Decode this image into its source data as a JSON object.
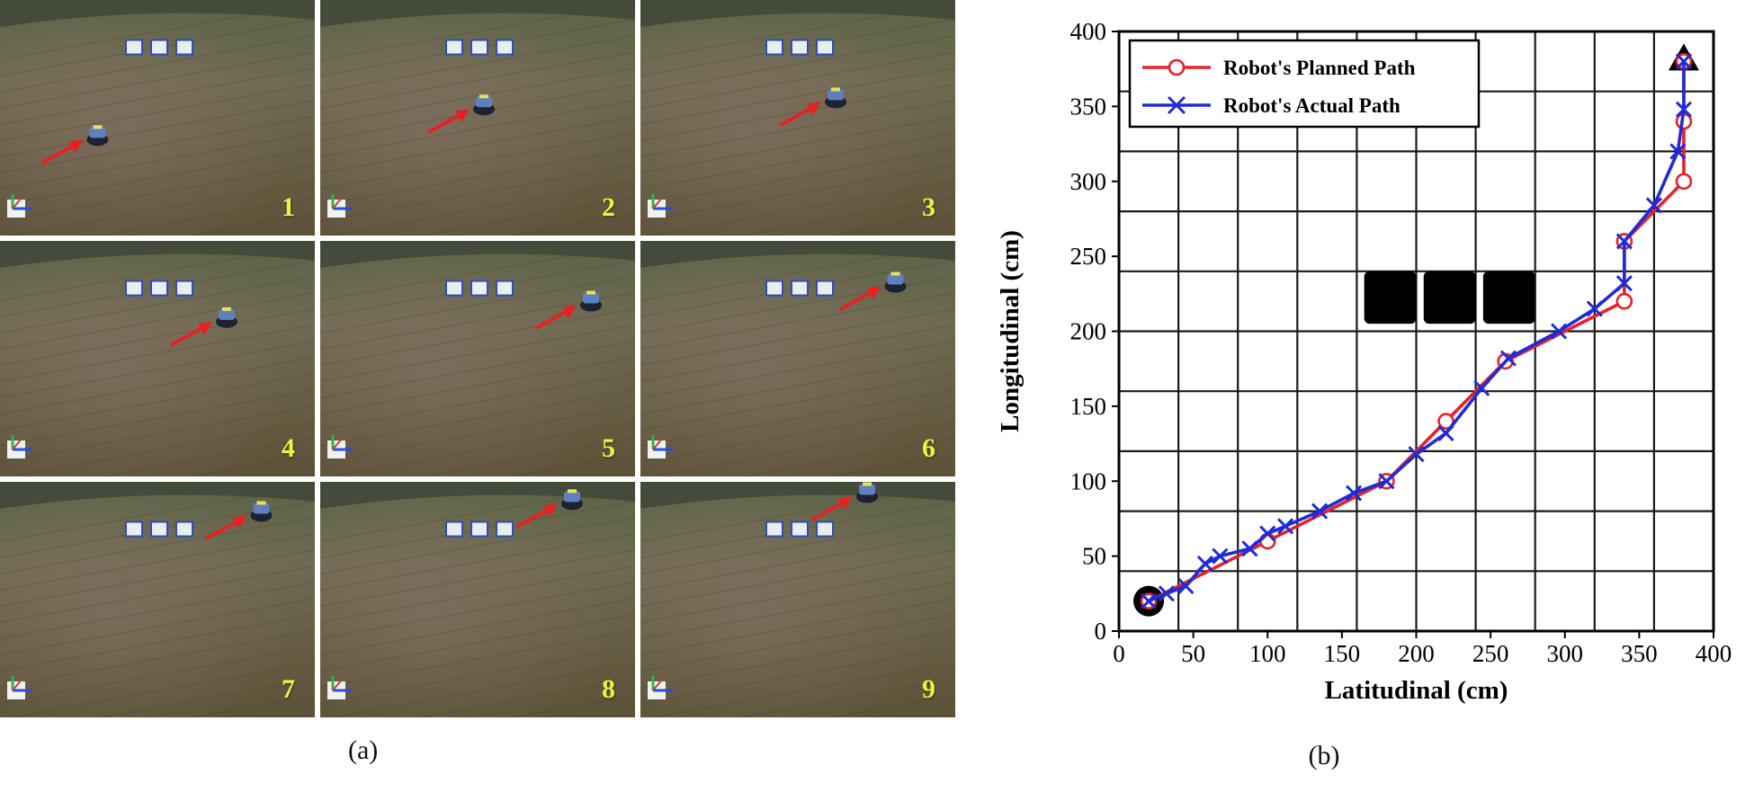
{
  "panel_a": {
    "caption": "(a)",
    "frames": [
      {
        "label": "1",
        "robot_u": 0.31,
        "robot_v": 0.57
      },
      {
        "label": "2",
        "robot_u": 0.52,
        "robot_v": 0.44
      },
      {
        "label": "3",
        "robot_u": 0.62,
        "robot_v": 0.41
      },
      {
        "label": "4",
        "robot_u": 0.72,
        "robot_v": 0.32
      },
      {
        "label": "5",
        "robot_u": 0.86,
        "robot_v": 0.25
      },
      {
        "label": "6",
        "robot_u": 0.81,
        "robot_v": 0.17
      },
      {
        "label": "7",
        "robot_u": 0.83,
        "robot_v": 0.12
      },
      {
        "label": "8",
        "robot_u": 0.8,
        "robot_v": 0.07
      },
      {
        "label": "9",
        "robot_u": 0.72,
        "robot_v": 0.04
      }
    ]
  },
  "chart_data": {
    "type": "line",
    "caption": "(b)",
    "xlabel": "Latitudinal (cm)",
    "ylabel": "Longitudinal (cm)",
    "xlim": [
      0,
      400
    ],
    "ylim": [
      0,
      400
    ],
    "xticks": [
      0,
      50,
      100,
      150,
      200,
      250,
      300,
      350,
      400
    ],
    "yticks": [
      0,
      50,
      100,
      150,
      200,
      250,
      300,
      350,
      400
    ],
    "grid_step": 40,
    "grid": true,
    "legend_position": "top-left",
    "series": [
      {
        "name": "Robot's Planned Path",
        "color": "#e8202a",
        "marker": "circle",
        "points": [
          [
            20,
            20
          ],
          [
            100,
            60
          ],
          [
            180,
            100
          ],
          [
            220,
            140
          ],
          [
            260,
            180
          ],
          [
            340,
            220
          ],
          [
            340,
            260
          ],
          [
            380,
            300
          ],
          [
            380,
            340
          ],
          [
            380,
            380
          ]
        ]
      },
      {
        "name": "Robot's Actual Path",
        "color": "#1f2bd6",
        "marker": "x",
        "points": [
          [
            20,
            20
          ],
          [
            32,
            25
          ],
          [
            45,
            30
          ],
          [
            58,
            45
          ],
          [
            68,
            50
          ],
          [
            88,
            55
          ],
          [
            100,
            65
          ],
          [
            112,
            70
          ],
          [
            135,
            80
          ],
          [
            158,
            92
          ],
          [
            180,
            100
          ],
          [
            200,
            118
          ],
          [
            220,
            132
          ],
          [
            244,
            162
          ],
          [
            262,
            182
          ],
          [
            296,
            200
          ],
          [
            320,
            215
          ],
          [
            340,
            232
          ],
          [
            340,
            260
          ],
          [
            360,
            284
          ],
          [
            376,
            320
          ],
          [
            380,
            348
          ],
          [
            380,
            380
          ]
        ]
      }
    ],
    "obstacles": [
      {
        "x_range": [
          165,
          200
        ],
        "y_range": [
          205,
          240
        ]
      },
      {
        "x_range": [
          205,
          240
        ],
        "y_range": [
          205,
          240
        ]
      },
      {
        "x_range": [
          245,
          280
        ],
        "y_range": [
          205,
          240
        ]
      }
    ],
    "start": {
      "x": 20,
      "y": 20,
      "shape": "circle"
    },
    "goal": {
      "x": 380,
      "y": 380,
      "shape": "triangle"
    }
  }
}
